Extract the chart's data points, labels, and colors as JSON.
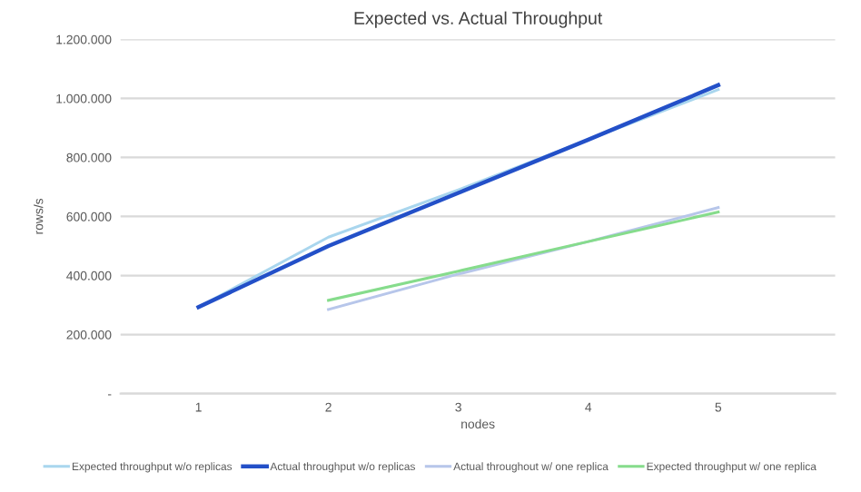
{
  "chart_data": {
    "type": "line",
    "title": "Expected vs. Actual Throughput",
    "xlabel": "nodes",
    "ylabel": "rows/s",
    "categories": [
      "1",
      "2",
      "3",
      "4",
      "5"
    ],
    "series": [
      {
        "name": "Expected throughput w/o replicas",
        "color": "#a9d6ee",
        "values": [
          293000,
          530000,
          690000,
          860000,
          1030000
        ]
      },
      {
        "name": "Actual throughput w/o replicas",
        "color": "#2350c8",
        "values": [
          293000,
          500000,
          680000,
          860000,
          1045000
        ]
      },
      {
        "name": "Actual throughout w/ one replica",
        "color": "#b7c6ea",
        "values": [
          null,
          285000,
          405000,
          515000,
          630000
        ]
      },
      {
        "name": "Expected throughput w/ one replica",
        "color": "#86dc8c",
        "values": [
          null,
          316000,
          415000,
          515000,
          615000
        ]
      }
    ],
    "ylim": [
      0,
      1200000
    ],
    "yticks": [
      {
        "value": 0,
        "label": "-"
      },
      {
        "value": 200000,
        "label": "200.000"
      },
      {
        "value": 400000,
        "label": "400.000"
      },
      {
        "value": 600000,
        "label": "600.000"
      },
      {
        "value": 800000,
        "label": "800.000"
      },
      {
        "value": 1000000,
        "label": "1.000.000"
      },
      {
        "value": 1200000,
        "label": "1.200.000"
      }
    ],
    "grid": "y",
    "legend": "bottom",
    "marker": "none",
    "line_style": "solid"
  }
}
